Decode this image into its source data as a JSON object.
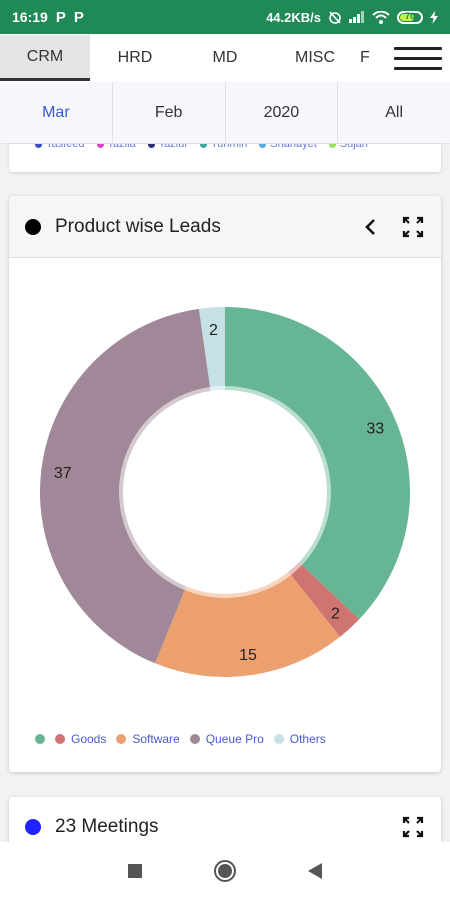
{
  "status_bar": {
    "time": "16:19",
    "app_icons": [
      "P",
      "P"
    ],
    "net_speed": "44.2KB/s",
    "battery": "70"
  },
  "tabs": [
    "CRM",
    "HRD",
    "MD",
    "MISC",
    "F"
  ],
  "period": [
    "Mar",
    "Feb",
    "2020",
    "All"
  ],
  "prev_legend": [
    {
      "name": "Tasfeed",
      "color": "#3c4bc8"
    },
    {
      "name": "Tazlia",
      "color": "#e23fc8"
    },
    {
      "name": "Taziur",
      "color": "#2b2f7a"
    },
    {
      "name": "Tuhmin",
      "color": "#39a8a0"
    },
    {
      "name": "Shahayet",
      "color": "#5aa8e6"
    },
    {
      "name": "Sujan",
      "color": "#9adf5a"
    }
  ],
  "card": {
    "title": "Product wise Leads"
  },
  "chart_data": {
    "type": "pie",
    "title": "Product wise Leads",
    "slices": [
      {
        "name": "",
        "value": 33,
        "color": "#66b594"
      },
      {
        "name": "Goods",
        "value": 2,
        "color": "#d07472"
      },
      {
        "name": "Software",
        "value": 15,
        "color": "#eda06f"
      },
      {
        "name": "Queue Pro",
        "value": 37,
        "color": "#a08898"
      },
      {
        "name": "Others",
        "value": 2,
        "color": "#c5e1e6"
      }
    ],
    "legend_placement": "bottom-left"
  },
  "meetings": {
    "title": "23 Meetings"
  }
}
